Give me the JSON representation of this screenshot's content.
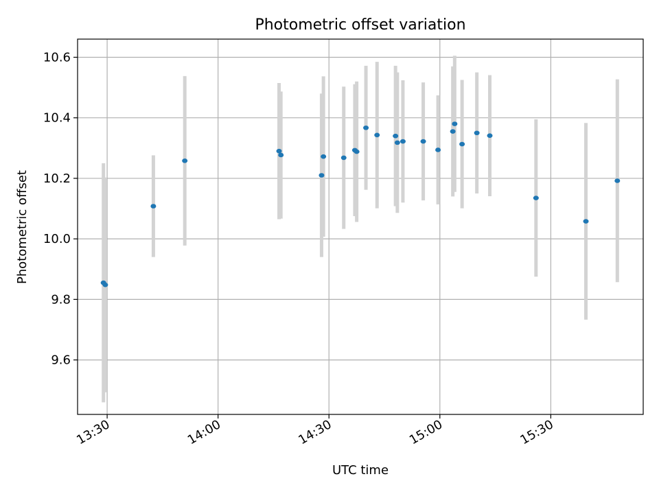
{
  "chart_data": {
    "type": "scatter",
    "title": "Photometric offset variation",
    "xlabel": "UTC time",
    "ylabel": "Photometric offset",
    "x_ticks": [
      "13:30",
      "14:00",
      "14:30",
      "15:00",
      "15:30"
    ],
    "y_ticks": [
      "9.6",
      "9.8",
      "10.0",
      "10.2",
      "10.4",
      "10.6"
    ],
    "xlim": [
      "13:22",
      "15:55"
    ],
    "ylim": [
      9.42,
      10.66
    ],
    "grid": true,
    "colors": {
      "points": "#1f77b4",
      "errorbars": "#d3d3d3",
      "grid": "#b0b0b0"
    },
    "series": [
      {
        "points": [
          {
            "t": "13:29",
            "y": 9.855,
            "err": 0.395
          },
          {
            "t": "13:29.5",
            "y": 9.848,
            "err": 0.355
          },
          {
            "t": "13:42.5",
            "y": 10.108,
            "err": 0.168
          },
          {
            "t": "13:51",
            "y": 10.258,
            "err": 0.28
          },
          {
            "t": "14:16.5",
            "y": 10.29,
            "err": 0.225
          },
          {
            "t": "14:17",
            "y": 10.277,
            "err": 0.21
          },
          {
            "t": "14:28",
            "y": 10.21,
            "err": 0.27
          },
          {
            "t": "14:28.5",
            "y": 10.272,
            "err": 0.265
          },
          {
            "t": "14:34",
            "y": 10.268,
            "err": 0.235
          },
          {
            "t": "14:37",
            "y": 10.293,
            "err": 0.218
          },
          {
            "t": "14:37.5",
            "y": 10.288,
            "err": 0.232
          },
          {
            "t": "14:40",
            "y": 10.367,
            "err": 0.205
          },
          {
            "t": "14:43",
            "y": 10.343,
            "err": 0.242
          },
          {
            "t": "14:48",
            "y": 10.34,
            "err": 0.232
          },
          {
            "t": "14:48.5",
            "y": 10.318,
            "err": 0.232
          },
          {
            "t": "14:50",
            "y": 10.322,
            "err": 0.202
          },
          {
            "t": "14:55.5",
            "y": 10.322,
            "err": 0.195
          },
          {
            "t": "14:59.5",
            "y": 10.294,
            "err": 0.18
          },
          {
            "t": "15:03.5",
            "y": 10.355,
            "err": 0.215
          },
          {
            "t": "15:04",
            "y": 10.38,
            "err": 0.225
          },
          {
            "t": "15:06",
            "y": 10.313,
            "err": 0.212
          },
          {
            "t": "15:10",
            "y": 10.35,
            "err": 0.2
          },
          {
            "t": "15:13.5",
            "y": 10.341,
            "err": 0.2
          },
          {
            "t": "15:26",
            "y": 10.135,
            "err": 0.26
          },
          {
            "t": "15:39.5",
            "y": 10.058,
            "err": 0.325
          },
          {
            "t": "15:48",
            "y": 10.192,
            "err": 0.335
          }
        ]
      }
    ]
  }
}
